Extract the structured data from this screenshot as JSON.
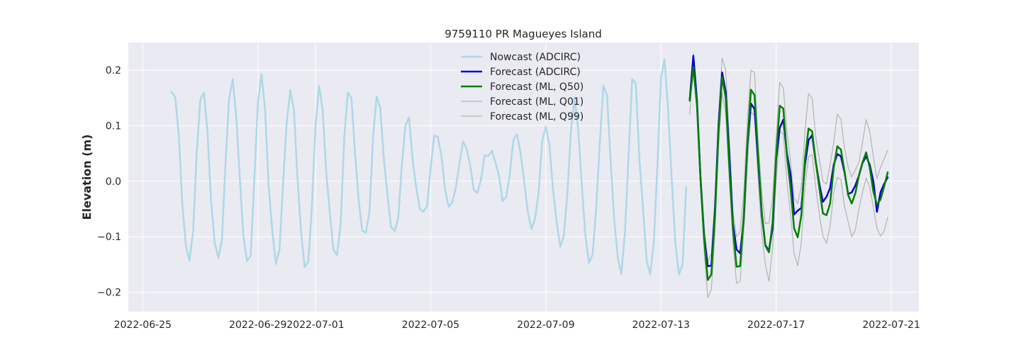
{
  "chart_data": {
    "type": "line",
    "title": "9759110 PR Magueyes Island",
    "xlabel": "",
    "ylabel": "Elevation (m)",
    "xlim": [
      "2022-06-24 12:00",
      "2022-07-21 23:00"
    ],
    "ylim": [
      -0.235,
      0.25
    ],
    "grid": true,
    "legend_position": "top-center",
    "x_ticks": [
      "2022-06-25",
      "2022-06-29",
      "2022-07-01",
      "2022-07-05",
      "2022-07-09",
      "2022-07-13",
      "2022-07-17",
      "2022-07-21"
    ],
    "y_ticks": [
      -0.2,
      -0.1,
      0.0,
      0.1,
      0.2
    ],
    "y_tick_labels": [
      "−0.2",
      "−0.1",
      "0.0",
      "0.1",
      "0.2"
    ],
    "series": [
      {
        "name": "Nowcast (ADCIRC)",
        "color": "#add8e6",
        "width": 2.5,
        "x": [
          "2022-06-26 00:00",
          "2022-06-26 03:00",
          "2022-06-26 06:00",
          "2022-06-26 09:00",
          "2022-06-26 12:00",
          "2022-06-26 15:00",
          "2022-06-26 18:00",
          "2022-06-26 21:00",
          "2022-06-27 00:00",
          "2022-06-27 03:00",
          "2022-06-27 06:00",
          "2022-06-27 09:00",
          "2022-06-27 12:00",
          "2022-06-27 15:00",
          "2022-06-27 18:00",
          "2022-06-27 21:00",
          "2022-06-28 00:00",
          "2022-06-28 03:00",
          "2022-06-28 06:00",
          "2022-06-28 09:00",
          "2022-06-28 12:00",
          "2022-06-28 15:00",
          "2022-06-28 18:00",
          "2022-06-28 21:00",
          "2022-06-29 00:00",
          "2022-06-29 03:00",
          "2022-06-29 06:00",
          "2022-06-29 09:00",
          "2022-06-29 12:00",
          "2022-06-29 15:00",
          "2022-06-29 18:00",
          "2022-06-29 21:00",
          "2022-06-30 00:00",
          "2022-06-30 03:00",
          "2022-06-30 06:00",
          "2022-06-30 09:00",
          "2022-06-30 12:00",
          "2022-06-30 15:00",
          "2022-06-30 18:00",
          "2022-06-30 21:00",
          "2022-07-01 00:00",
          "2022-07-01 03:00",
          "2022-07-01 06:00",
          "2022-07-01 09:00",
          "2022-07-01 12:00",
          "2022-07-01 15:00",
          "2022-07-01 18:00",
          "2022-07-01 21:00",
          "2022-07-02 00:00",
          "2022-07-02 03:00",
          "2022-07-02 06:00",
          "2022-07-02 09:00",
          "2022-07-02 12:00",
          "2022-07-02 15:00",
          "2022-07-02 18:00",
          "2022-07-02 21:00",
          "2022-07-03 00:00",
          "2022-07-03 03:00",
          "2022-07-03 06:00",
          "2022-07-03 09:00",
          "2022-07-03 12:00",
          "2022-07-03 15:00",
          "2022-07-03 18:00",
          "2022-07-03 21:00",
          "2022-07-04 00:00",
          "2022-07-04 03:00",
          "2022-07-04 06:00",
          "2022-07-04 09:00",
          "2022-07-04 12:00",
          "2022-07-04 15:00",
          "2022-07-04 18:00",
          "2022-07-04 21:00",
          "2022-07-05 00:00",
          "2022-07-05 03:00",
          "2022-07-05 06:00",
          "2022-07-05 09:00",
          "2022-07-05 12:00",
          "2022-07-05 15:00",
          "2022-07-05 18:00",
          "2022-07-05 21:00",
          "2022-07-06 00:00",
          "2022-07-06 03:00",
          "2022-07-06 06:00",
          "2022-07-06 09:00",
          "2022-07-06 12:00",
          "2022-07-06 15:00",
          "2022-07-06 18:00",
          "2022-07-06 21:00",
          "2022-07-07 00:00",
          "2022-07-07 03:00",
          "2022-07-07 06:00",
          "2022-07-07 09:00",
          "2022-07-07 12:00",
          "2022-07-07 15:00",
          "2022-07-07 18:00",
          "2022-07-07 21:00",
          "2022-07-08 00:00",
          "2022-07-08 03:00",
          "2022-07-08 06:00",
          "2022-07-08 09:00",
          "2022-07-08 12:00",
          "2022-07-08 15:00",
          "2022-07-08 18:00",
          "2022-07-08 21:00",
          "2022-07-09 00:00",
          "2022-07-09 03:00",
          "2022-07-09 06:00",
          "2022-07-09 09:00",
          "2022-07-09 12:00",
          "2022-07-09 15:00",
          "2022-07-09 18:00",
          "2022-07-09 21:00",
          "2022-07-10 00:00",
          "2022-07-10 03:00",
          "2022-07-10 06:00",
          "2022-07-10 09:00",
          "2022-07-10 12:00",
          "2022-07-10 15:00",
          "2022-07-10 18:00",
          "2022-07-10 21:00",
          "2022-07-11 00:00",
          "2022-07-11 03:00",
          "2022-07-11 06:00",
          "2022-07-11 09:00",
          "2022-07-11 12:00",
          "2022-07-11 15:00",
          "2022-07-11 18:00",
          "2022-07-11 21:00",
          "2022-07-12 00:00",
          "2022-07-12 03:00",
          "2022-07-12 06:00",
          "2022-07-12 09:00",
          "2022-07-12 12:00",
          "2022-07-12 15:00",
          "2022-07-12 18:00",
          "2022-07-12 21:00",
          "2022-07-13 00:00",
          "2022-07-13 03:00",
          "2022-07-13 06:00",
          "2022-07-13 09:00",
          "2022-07-13 12:00",
          "2022-07-13 15:00",
          "2022-07-13 18:00",
          "2022-07-13 21:00"
        ],
        "values": [
          0.161,
          0.152,
          0.085,
          -0.04,
          -0.117,
          -0.143,
          -0.09,
          0.05,
          0.147,
          0.16,
          0.088,
          -0.036,
          -0.111,
          -0.138,
          -0.106,
          0.032,
          0.148,
          0.184,
          0.114,
          0.002,
          -0.101,
          -0.144,
          -0.134,
          0.004,
          0.14,
          0.193,
          0.129,
          -0.011,
          -0.089,
          -0.149,
          -0.123,
          -0.003,
          0.106,
          0.164,
          0.129,
          0.005,
          -0.091,
          -0.155,
          -0.145,
          -0.045,
          0.098,
          0.172,
          0.128,
          0.015,
          -0.057,
          -0.124,
          -0.133,
          -0.077,
          0.08,
          0.16,
          0.15,
          0.05,
          -0.035,
          -0.089,
          -0.093,
          -0.055,
          0.08,
          0.153,
          0.132,
          0.04,
          -0.025,
          -0.082,
          -0.09,
          -0.066,
          0.03,
          0.1,
          0.115,
          0.038,
          -0.012,
          -0.05,
          -0.055,
          -0.045,
          0.025,
          0.082,
          0.08,
          0.046,
          -0.015,
          -0.046,
          -0.038,
          -0.012,
          0.032,
          0.072,
          0.058,
          0.028,
          -0.016,
          -0.021,
          0.003,
          0.047,
          0.045,
          0.055,
          0.034,
          0.01,
          -0.036,
          -0.028,
          0.012,
          0.075,
          0.085,
          0.05,
          0.0,
          -0.055,
          -0.086,
          -0.068,
          -0.02,
          0.072,
          0.099,
          0.065,
          -0.015,
          -0.073,
          -0.118,
          -0.098,
          -0.02,
          0.092,
          0.15,
          0.093,
          -0.007,
          -0.098,
          -0.147,
          -0.132,
          -0.048,
          0.068,
          0.172,
          0.155,
          0.037,
          -0.068,
          -0.138,
          -0.167,
          -0.091,
          0.045,
          0.184,
          0.176,
          0.04,
          -0.048,
          -0.142,
          -0.168,
          -0.11,
          0.03,
          0.186,
          0.219,
          0.125,
          0.002,
          -0.113,
          -0.168,
          -0.15,
          -0.01
        ]
      },
      {
        "name": "Forecast (ADCIRC)",
        "color": "#0000cd",
        "width": 2.5,
        "x": [
          "2022-07-14 00:00",
          "2022-07-14 03:00",
          "2022-07-14 06:00",
          "2022-07-14 09:00",
          "2022-07-14 12:00",
          "2022-07-14 15:00",
          "2022-07-14 18:00",
          "2022-07-14 21:00",
          "2022-07-15 00:00",
          "2022-07-15 03:00",
          "2022-07-15 06:00",
          "2022-07-15 09:00",
          "2022-07-15 12:00",
          "2022-07-15 15:00",
          "2022-07-15 18:00",
          "2022-07-15 21:00",
          "2022-07-16 00:00",
          "2022-07-16 03:00",
          "2022-07-16 06:00",
          "2022-07-16 09:00",
          "2022-07-16 12:00",
          "2022-07-16 15:00",
          "2022-07-16 18:00",
          "2022-07-16 21:00",
          "2022-07-17 00:00",
          "2022-07-17 03:00",
          "2022-07-17 06:00",
          "2022-07-17 09:00",
          "2022-07-17 12:00",
          "2022-07-17 15:00",
          "2022-07-17 18:00",
          "2022-07-17 21:00",
          "2022-07-18 00:00",
          "2022-07-18 03:00",
          "2022-07-18 06:00",
          "2022-07-18 09:00",
          "2022-07-18 12:00",
          "2022-07-18 15:00",
          "2022-07-18 18:00",
          "2022-07-18 21:00",
          "2022-07-19 00:00",
          "2022-07-19 03:00",
          "2022-07-19 06:00",
          "2022-07-19 09:00",
          "2022-07-19 12:00",
          "2022-07-19 15:00",
          "2022-07-19 18:00",
          "2022-07-19 21:00",
          "2022-07-20 00:00",
          "2022-07-20 03:00",
          "2022-07-20 06:00",
          "2022-07-20 09:00",
          "2022-07-20 12:00",
          "2022-07-20 15:00",
          "2022-07-20 18:00",
          "2022-07-20 21:00"
        ],
        "values": [
          0.147,
          0.226,
          0.145,
          0.003,
          -0.1,
          -0.153,
          -0.152,
          -0.05,
          0.1,
          0.196,
          0.16,
          0.045,
          -0.076,
          -0.123,
          -0.13,
          -0.068,
          0.065,
          0.14,
          0.13,
          0.035,
          -0.06,
          -0.115,
          -0.125,
          -0.085,
          0.04,
          0.096,
          0.111,
          0.05,
          0.012,
          -0.06,
          -0.053,
          -0.048,
          0.03,
          0.074,
          0.083,
          0.035,
          -0.005,
          -0.037,
          -0.028,
          -0.012,
          0.03,
          0.049,
          0.045,
          0.016,
          -0.023,
          -0.02,
          -0.008,
          0.01,
          0.033,
          0.045,
          0.03,
          0.0,
          -0.055,
          -0.02,
          -0.005,
          0.007
        ]
      },
      {
        "name": "Forecast (ML, Q50)",
        "color": "#008000",
        "width": 2.5,
        "x": [
          "2022-07-14 00:00",
          "2022-07-14 03:00",
          "2022-07-14 06:00",
          "2022-07-14 09:00",
          "2022-07-14 12:00",
          "2022-07-14 15:00",
          "2022-07-14 18:00",
          "2022-07-14 21:00",
          "2022-07-15 00:00",
          "2022-07-15 03:00",
          "2022-07-15 06:00",
          "2022-07-15 09:00",
          "2022-07-15 12:00",
          "2022-07-15 15:00",
          "2022-07-15 18:00",
          "2022-07-15 21:00",
          "2022-07-16 00:00",
          "2022-07-16 03:00",
          "2022-07-16 06:00",
          "2022-07-16 09:00",
          "2022-07-16 12:00",
          "2022-07-16 15:00",
          "2022-07-16 18:00",
          "2022-07-16 21:00",
          "2022-07-17 00:00",
          "2022-07-17 03:00",
          "2022-07-17 06:00",
          "2022-07-17 09:00",
          "2022-07-17 12:00",
          "2022-07-17 15:00",
          "2022-07-17 18:00",
          "2022-07-17 21:00",
          "2022-07-18 00:00",
          "2022-07-18 03:00",
          "2022-07-18 06:00",
          "2022-07-18 09:00",
          "2022-07-18 12:00",
          "2022-07-18 15:00",
          "2022-07-18 18:00",
          "2022-07-18 21:00",
          "2022-07-19 00:00",
          "2022-07-19 03:00",
          "2022-07-19 06:00",
          "2022-07-19 09:00",
          "2022-07-19 12:00",
          "2022-07-19 15:00",
          "2022-07-19 18:00",
          "2022-07-19 21:00",
          "2022-07-20 00:00",
          "2022-07-20 03:00",
          "2022-07-20 06:00",
          "2022-07-20 09:00",
          "2022-07-20 12:00",
          "2022-07-20 15:00",
          "2022-07-20 18:00",
          "2022-07-20 21:00"
        ],
        "values": [
          0.145,
          0.206,
          0.137,
          0.0,
          -0.104,
          -0.178,
          -0.168,
          -0.062,
          0.09,
          0.188,
          0.15,
          0.025,
          -0.085,
          -0.154,
          -0.153,
          -0.062,
          0.068,
          0.165,
          0.155,
          0.045,
          -0.056,
          -0.116,
          -0.128,
          -0.075,
          0.045,
          0.136,
          0.131,
          0.045,
          -0.012,
          -0.085,
          -0.101,
          -0.061,
          0.04,
          0.095,
          0.09,
          0.035,
          -0.012,
          -0.058,
          -0.061,
          -0.04,
          0.025,
          0.063,
          0.057,
          0.018,
          -0.025,
          -0.04,
          -0.022,
          0.01,
          0.034,
          0.052,
          0.025,
          -0.018,
          -0.042,
          -0.033,
          -0.01,
          0.016
        ]
      },
      {
        "name": "Forecast (ML, Q01)",
        "color": "#b4b4b4",
        "width": 1.2,
        "x": [
          "2022-07-14 00:00",
          "2022-07-14 03:00",
          "2022-07-14 06:00",
          "2022-07-14 09:00",
          "2022-07-14 12:00",
          "2022-07-14 15:00",
          "2022-07-14 18:00",
          "2022-07-14 21:00",
          "2022-07-15 00:00",
          "2022-07-15 03:00",
          "2022-07-15 06:00",
          "2022-07-15 09:00",
          "2022-07-15 12:00",
          "2022-07-15 15:00",
          "2022-07-15 18:00",
          "2022-07-15 21:00",
          "2022-07-16 00:00",
          "2022-07-16 03:00",
          "2022-07-16 06:00",
          "2022-07-16 09:00",
          "2022-07-16 12:00",
          "2022-07-16 15:00",
          "2022-07-16 18:00",
          "2022-07-16 21:00",
          "2022-07-17 00:00",
          "2022-07-17 03:00",
          "2022-07-17 06:00",
          "2022-07-17 09:00",
          "2022-07-17 12:00",
          "2022-07-17 15:00",
          "2022-07-17 18:00",
          "2022-07-17 21:00",
          "2022-07-18 00:00",
          "2022-07-18 03:00",
          "2022-07-18 06:00",
          "2022-07-18 09:00",
          "2022-07-18 12:00",
          "2022-07-18 15:00",
          "2022-07-18 18:00",
          "2022-07-18 21:00",
          "2022-07-19 00:00",
          "2022-07-19 03:00",
          "2022-07-19 06:00",
          "2022-07-19 09:00",
          "2022-07-19 12:00",
          "2022-07-19 15:00",
          "2022-07-19 18:00",
          "2022-07-19 21:00",
          "2022-07-20 00:00",
          "2022-07-20 03:00",
          "2022-07-20 06:00",
          "2022-07-20 09:00",
          "2022-07-20 12:00",
          "2022-07-20 15:00",
          "2022-07-20 18:00",
          "2022-07-20 21:00"
        ],
        "values": [
          0.145,
          0.2,
          0.13,
          -0.01,
          -0.125,
          -0.21,
          -0.195,
          -0.09,
          0.06,
          0.16,
          0.12,
          0.0,
          -0.11,
          -0.184,
          -0.18,
          -0.09,
          0.03,
          0.125,
          0.118,
          0.005,
          -0.095,
          -0.15,
          -0.18,
          -0.12,
          0.0,
          0.09,
          0.085,
          0.0,
          -0.06,
          -0.13,
          -0.152,
          -0.11,
          -0.01,
          0.044,
          0.048,
          -0.01,
          -0.06,
          -0.099,
          -0.112,
          -0.08,
          -0.02,
          0.007,
          0.003,
          -0.045,
          -0.073,
          -0.1,
          -0.088,
          -0.05,
          -0.02,
          0.006,
          -0.01,
          -0.046,
          -0.085,
          -0.099,
          -0.09,
          -0.065
        ]
      },
      {
        "name": "Forecast (ML, Q99)",
        "color": "#b4b4b4",
        "width": 1.2,
        "x": [
          "2022-07-14 00:00",
          "2022-07-14 03:00",
          "2022-07-14 06:00",
          "2022-07-14 09:00",
          "2022-07-14 12:00",
          "2022-07-14 15:00",
          "2022-07-14 18:00",
          "2022-07-14 21:00",
          "2022-07-15 00:00",
          "2022-07-15 03:00",
          "2022-07-15 06:00",
          "2022-07-15 09:00",
          "2022-07-15 12:00",
          "2022-07-15 15:00",
          "2022-07-15 18:00",
          "2022-07-15 21:00",
          "2022-07-16 00:00",
          "2022-07-16 03:00",
          "2022-07-16 06:00",
          "2022-07-16 09:00",
          "2022-07-16 12:00",
          "2022-07-16 15:00",
          "2022-07-16 18:00",
          "2022-07-16 21:00",
          "2022-07-17 00:00",
          "2022-07-17 03:00",
          "2022-07-17 06:00",
          "2022-07-17 09:00",
          "2022-07-17 12:00",
          "2022-07-17 15:00",
          "2022-07-17 18:00",
          "2022-07-17 21:00",
          "2022-07-18 00:00",
          "2022-07-18 03:00",
          "2022-07-18 06:00",
          "2022-07-18 09:00",
          "2022-07-18 12:00",
          "2022-07-18 15:00",
          "2022-07-18 18:00",
          "2022-07-18 21:00",
          "2022-07-19 00:00",
          "2022-07-19 03:00",
          "2022-07-19 06:00",
          "2022-07-19 09:00",
          "2022-07-19 12:00",
          "2022-07-19 15:00",
          "2022-07-19 18:00",
          "2022-07-19 21:00",
          "2022-07-20 00:00",
          "2022-07-20 03:00",
          "2022-07-20 06:00",
          "2022-07-20 09:00",
          "2022-07-20 12:00",
          "2022-07-20 15:00",
          "2022-07-20 18:00",
          "2022-07-20 21:00"
        ],
        "values": [
          0.12,
          0.23,
          0.15,
          0.02,
          -0.08,
          -0.145,
          -0.13,
          -0.03,
          0.12,
          0.222,
          0.2,
          0.075,
          -0.055,
          -0.1,
          -0.09,
          -0.02,
          0.11,
          0.2,
          0.196,
          0.07,
          -0.02,
          -0.076,
          -0.075,
          -0.03,
          0.08,
          0.178,
          0.168,
          0.09,
          0.035,
          -0.03,
          -0.04,
          -0.01,
          0.09,
          0.158,
          0.15,
          0.08,
          0.04,
          0.0,
          -0.005,
          0.03,
          0.07,
          0.121,
          0.112,
          0.06,
          0.025,
          0.008,
          0.02,
          0.035,
          0.07,
          0.111,
          0.09,
          0.045,
          0.005,
          0.025,
          0.04,
          0.056
        ]
      }
    ]
  }
}
